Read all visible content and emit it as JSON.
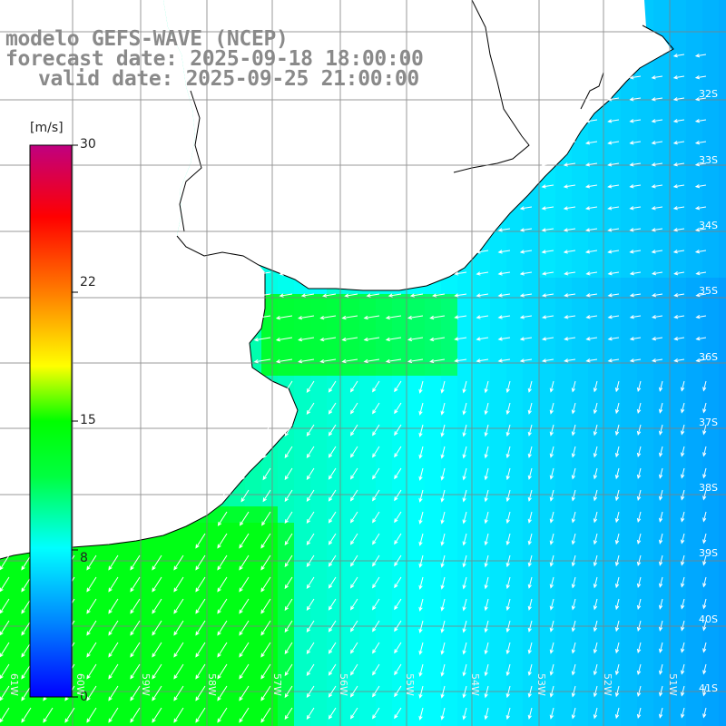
{
  "title": {
    "line1": "modelo GEFS-WAVE (NCEP)",
    "line2": "forecast date: 2025-09-18 18:00:00",
    "line3": "valid date: 2025-09-25 21:00:00"
  },
  "colorbar": {
    "unit": "[m/s]",
    "ticks": [
      {
        "value": 30,
        "label": "30"
      },
      {
        "value": 22,
        "label": "22"
      },
      {
        "value": 15,
        "label": "15"
      },
      {
        "value": 8,
        "label": "8"
      },
      {
        "value": 0,
        "label": "0"
      }
    ],
    "range": [
      0,
      30
    ]
  },
  "map": {
    "variable": "wind speed",
    "lat_labels": [
      "32S",
      "33S",
      "34S",
      "35S",
      "36S",
      "37S",
      "38S",
      "39S",
      "40S",
      "41S"
    ],
    "lon_labels": [
      "61W",
      "60W",
      "59W",
      "58W",
      "57W",
      "56W",
      "55W",
      "54W",
      "53W",
      "52W",
      "51W"
    ],
    "colors": {
      "land": "#ffffff",
      "coast": "#000000",
      "grid": "#808080",
      "arrow": "#ffffff",
      "title": "#8a8a8a"
    }
  }
}
